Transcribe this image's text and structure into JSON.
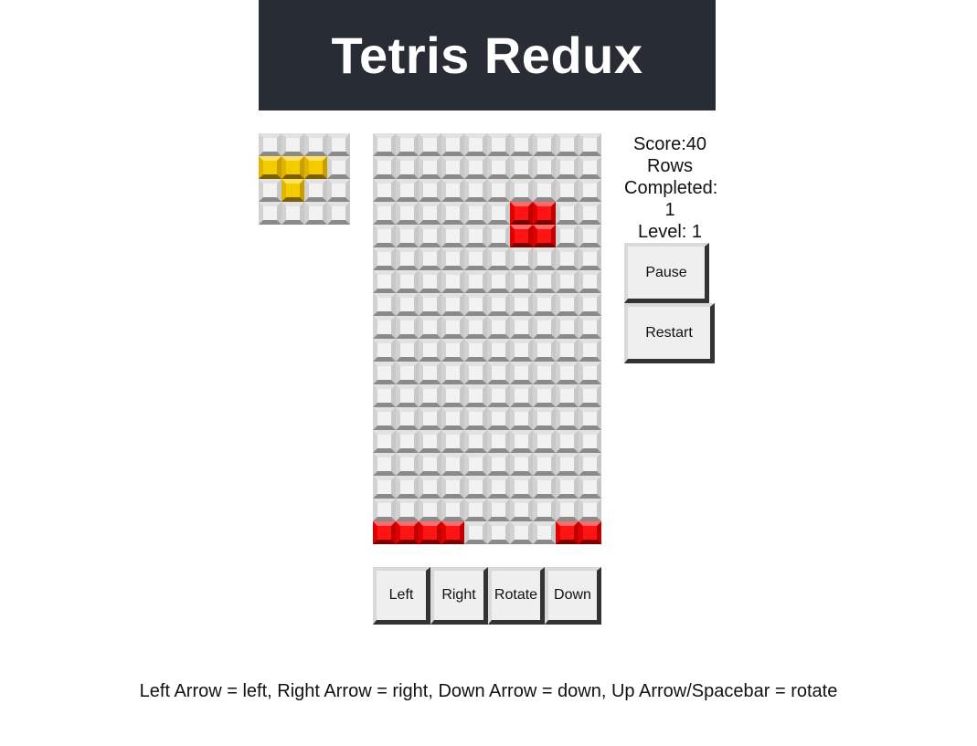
{
  "header": {
    "title": "Tetris Redux"
  },
  "preview": {
    "cols": 4,
    "rows": 4,
    "piece_color": "#f2cc00",
    "filled": [
      [
        1,
        0
      ],
      [
        1,
        1
      ],
      [
        1,
        2
      ],
      [
        2,
        1
      ]
    ]
  },
  "board": {
    "cols": 10,
    "rows": 18,
    "block_color": "#ff1414",
    "filled": [
      [
        3,
        6
      ],
      [
        3,
        7
      ],
      [
        4,
        6
      ],
      [
        4,
        7
      ],
      [
        17,
        0
      ],
      [
        17,
        1
      ],
      [
        17,
        2
      ],
      [
        17,
        3
      ],
      [
        17,
        8
      ],
      [
        17,
        9
      ]
    ]
  },
  "stats": {
    "score_label": "Score:40",
    "rows_label": "Rows",
    "completed_label": "Completed:",
    "rows_value": "1",
    "level_label": "Level: 1"
  },
  "buttons": {
    "pause": "Pause",
    "restart": "Restart"
  },
  "controls": {
    "left": "Left",
    "right": "Right",
    "rotate": "Rotate",
    "down": "Down"
  },
  "instructions": "Left Arrow = left, Right Arrow = right, Down Arrow = down, Up Arrow/Spacebar = rotate",
  "colors": {
    "header_bg": "#282c34",
    "empty_cell": "#f2f2f2"
  }
}
